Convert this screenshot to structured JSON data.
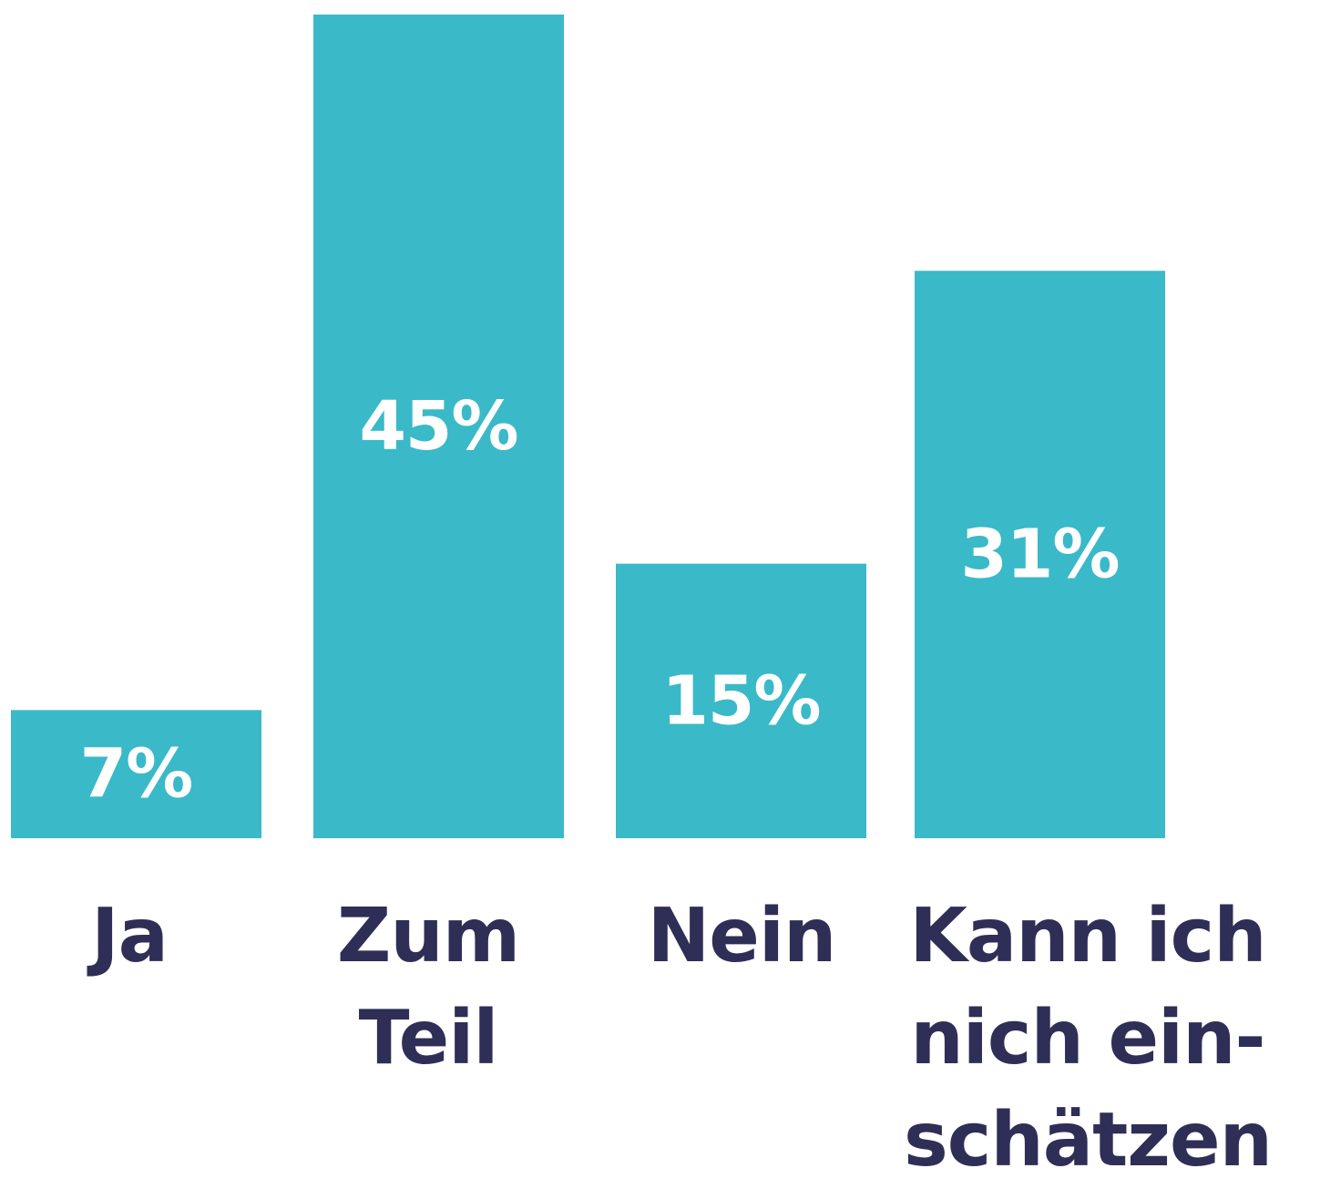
{
  "colors": {
    "bar": "#3ab9c8",
    "value_text": "#ffffff",
    "category_text": "#2f2e57",
    "background": "#ffffff"
  },
  "chart_data": {
    "type": "bar",
    "title": "",
    "xlabel": "",
    "ylabel": "",
    "ylim": [
      0,
      45
    ],
    "grid": false,
    "legend": "none",
    "categories": [
      "Ja",
      "Zum Teil",
      "Nein",
      "Kann ich nich ein-schätzen"
    ],
    "category_label_lines": [
      [
        "Ja"
      ],
      [
        "Zum",
        "Teil"
      ],
      [
        "Nein"
      ],
      [
        "Kann ich",
        "nich ein-",
        "schätzen"
      ]
    ],
    "values": [
      7,
      45,
      15,
      31
    ],
    "value_labels": [
      "7%",
      "45%",
      "15%",
      "31%"
    ]
  }
}
